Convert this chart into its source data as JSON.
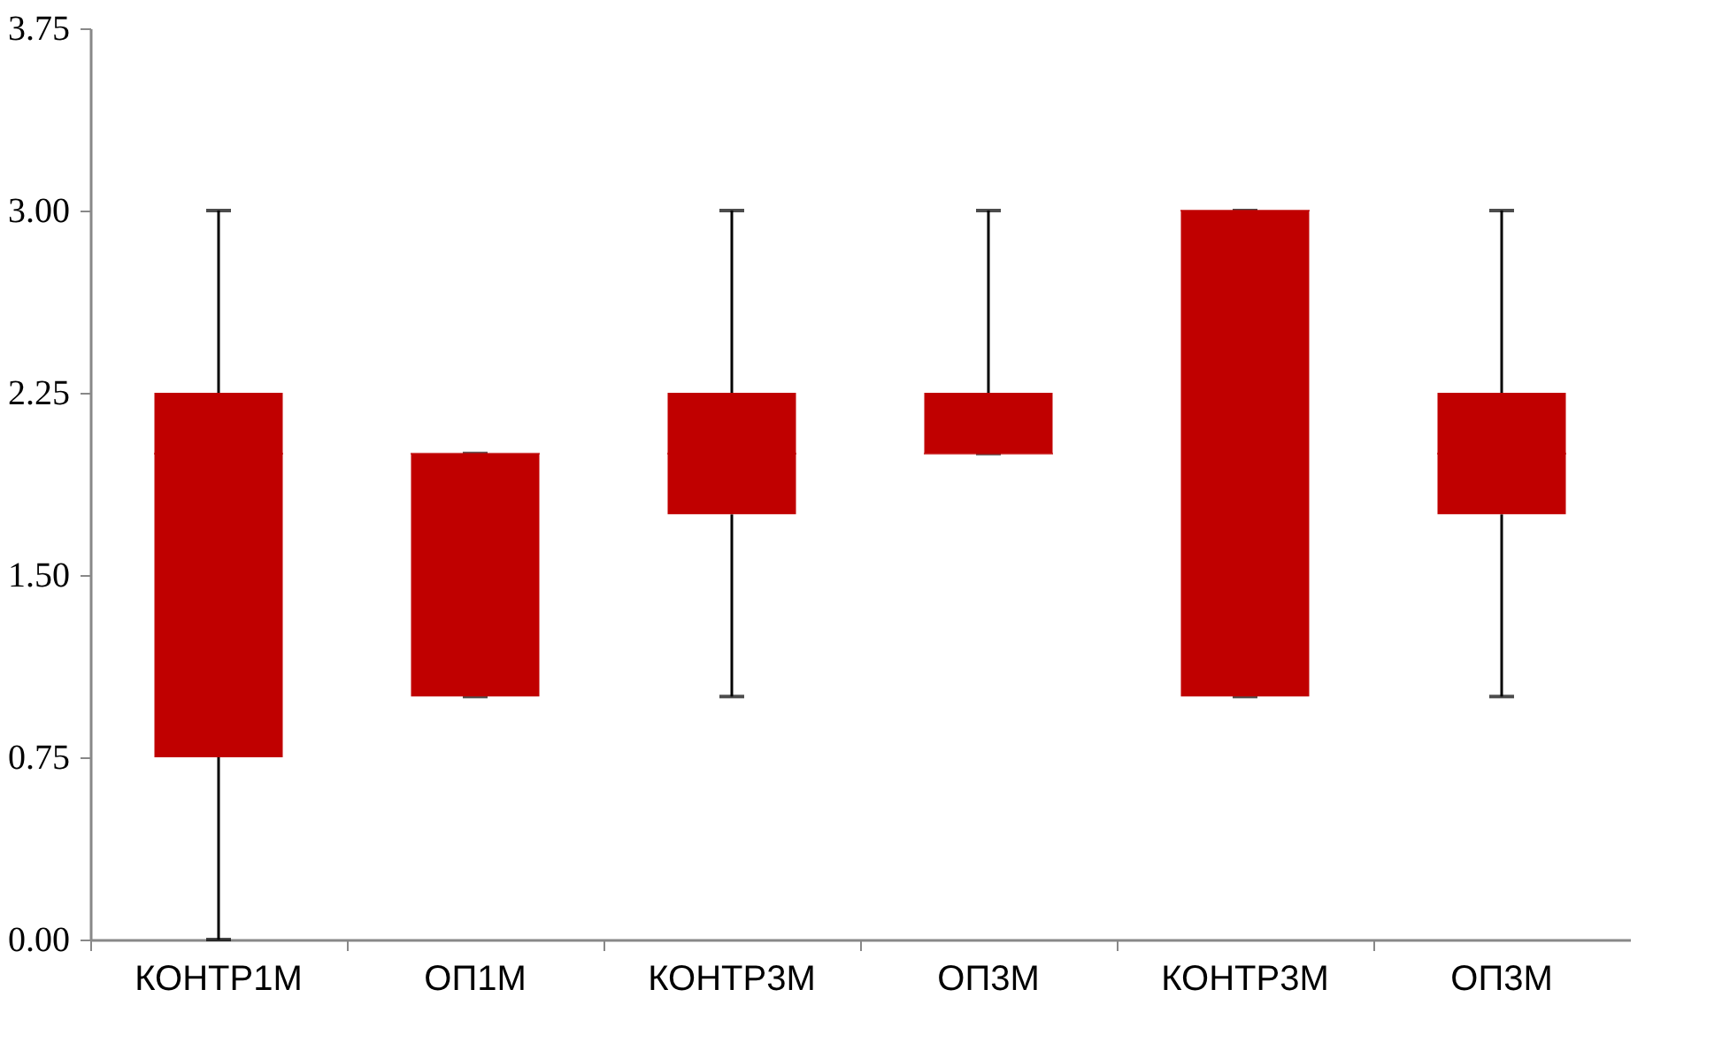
{
  "chart_data": {
    "type": "box",
    "categories": [
      "КОНТР1М",
      "ОП1М",
      "КОНТР3М",
      "ОП3М",
      "КОНТР3М",
      "ОП3М"
    ],
    "boxes": [
      {
        "low": 0,
        "q1": 0.75,
        "median": 2,
        "q3": 2.25,
        "high": 3
      },
      {
        "low": 1,
        "q1": 1,
        "median": 2,
        "q3": 2,
        "high": 2
      },
      {
        "low": 1,
        "q1": 1.75,
        "median": 2,
        "q3": 2.25,
        "high": 3
      },
      {
        "low": 2,
        "q1": 2,
        "median": 2,
        "q3": 2.25,
        "high": 3
      },
      {
        "low": 1,
        "q1": 1,
        "median": 3,
        "q3": 3,
        "high": 3
      },
      {
        "low": 1,
        "q1": 1.75,
        "median": 2,
        "q3": 2.25,
        "high": 3
      }
    ],
    "color": "#c00000",
    "ylim": [
      0,
      3.75
    ],
    "yticks": [
      {
        "value": 0,
        "label": "0.00"
      },
      {
        "value": 0.75,
        "label": "0.75"
      },
      {
        "value": 1.5,
        "label": "1.50"
      },
      {
        "value": 2.25,
        "label": "2.25"
      },
      {
        "value": 3,
        "label": "3.00"
      },
      {
        "value": 3.75,
        "label": "3.75"
      }
    ],
    "grid": false
  }
}
